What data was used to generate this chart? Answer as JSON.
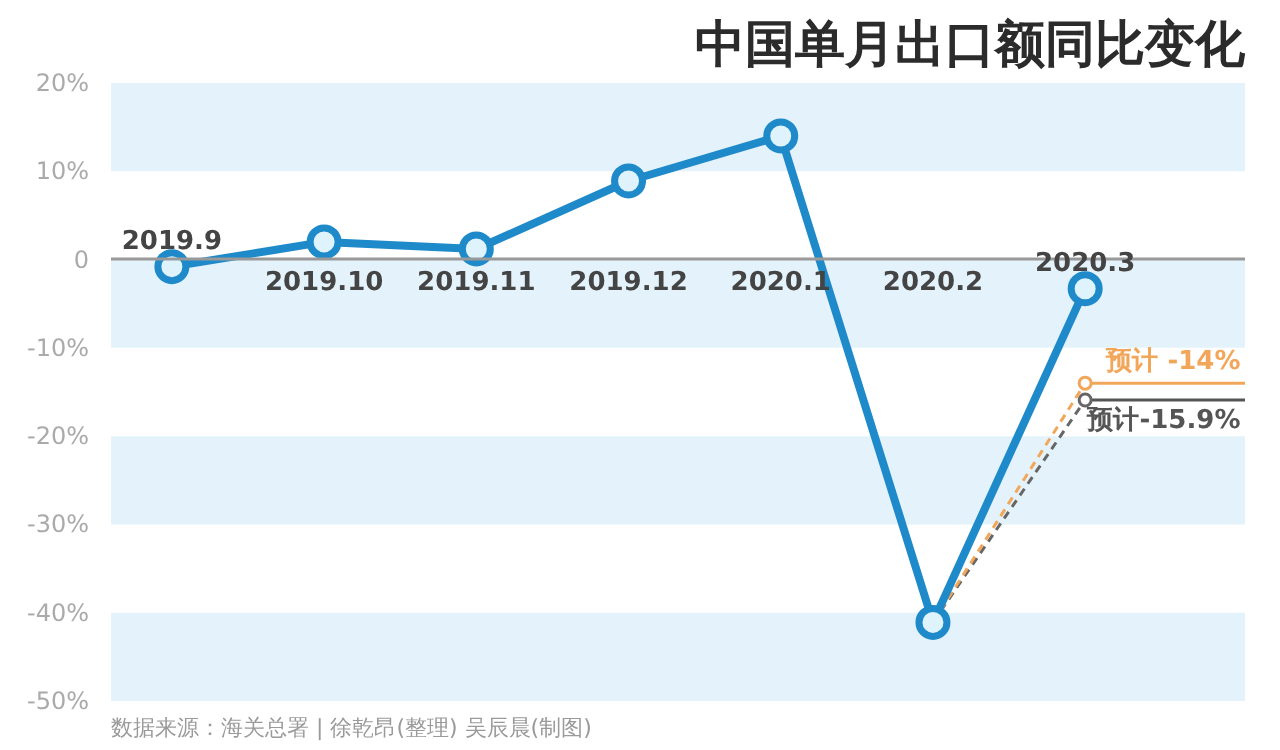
{
  "chart_data": {
    "type": "line",
    "title": "中国单月出口额同比变化",
    "categories": [
      "2019.9",
      "2019.10",
      "2019.11",
      "2019.12",
      "2020.1",
      "2020.2",
      "2020.3"
    ],
    "series": [
      {
        "color": "#1f8ac9",
        "values": [
          -0.8,
          2.0,
          1.2,
          8.9,
          14.0,
          -41.1,
          -3.3
        ],
        "marker": "circle",
        "line_style": "solid"
      },
      {
        "color": "#f2a65a",
        "values": [
          null,
          null,
          null,
          null,
          null,
          -41.1,
          -14
        ],
        "marker": "circle",
        "line_style": "dashed"
      },
      {
        "color": "#666666",
        "values": [
          null,
          null,
          null,
          null,
          null,
          -41.1,
          -15.9
        ],
        "marker": "circle",
        "line_style": "dashed"
      }
    ],
    "ylim": [
      -50,
      20
    ],
    "yticks": [
      {
        "value": 20,
        "label": "20%"
      },
      {
        "value": 10,
        "label": "10%"
      },
      0,
      {
        "value": -10,
        "label": "-10%"
      },
      {
        "value": -20,
        "label": "-20%"
      },
      {
        "value": -30,
        "label": "-30%"
      },
      {
        "value": -40,
        "label": "-40%"
      },
      {
        "value": -50,
        "label": "-50%"
      }
    ],
    "ref_lines": [
      {
        "axis": "y",
        "value": -14,
        "label": "预计 -14%",
        "color": "#f2a65a"
      },
      {
        "axis": "y",
        "value": -15.9,
        "label": "预计-15.9%",
        "color": "#555555"
      }
    ],
    "annotations": [
      "数据来源：海关总署  |  徐乾昂(整理)  吴辰晨(制图)"
    ]
  }
}
